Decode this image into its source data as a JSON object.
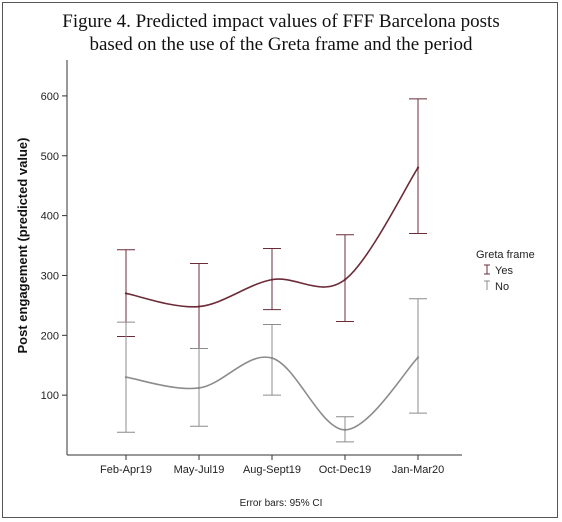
{
  "title_lines": [
    "Figure 4. Predicted impact values of FFF Barcelona posts",
    "based on the use of the Greta frame and the period"
  ],
  "footnote": "Error bars: 95% CI",
  "colors": {
    "yes": "#6b2c38",
    "no": "#8c8c8c",
    "axis": "#333333"
  },
  "chart_data": {
    "type": "line",
    "title": "Figure 4. Predicted impact values of FFF Barcelona posts based on the use of the Greta frame and the period",
    "xlabel": "",
    "ylabel": "Post engagement (predicted value)",
    "ylim": [
      0,
      660
    ],
    "yticks": [
      100,
      200,
      300,
      400,
      500,
      600
    ],
    "categories": [
      "Feb-Apr19",
      "May-Jul19",
      "Aug-Sept19",
      "Oct-Dec19",
      "Jan-Mar20"
    ],
    "legend": {
      "title": "Greta frame",
      "placement": "right"
    },
    "series": [
      {
        "name": "Yes",
        "values": [
          270,
          248,
          293,
          293,
          480
        ],
        "ci_lower": [
          198,
          178,
          243,
          223,
          370
        ],
        "ci_upper": [
          343,
          320,
          345,
          368,
          595
        ]
      },
      {
        "name": "No",
        "values": [
          130,
          112,
          162,
          42,
          163
        ],
        "ci_lower": [
          38,
          48,
          100,
          22,
          70
        ],
        "ci_upper": [
          222,
          178,
          218,
          64,
          261
        ]
      }
    ],
    "error_bars": "95% CI",
    "grid": false
  }
}
